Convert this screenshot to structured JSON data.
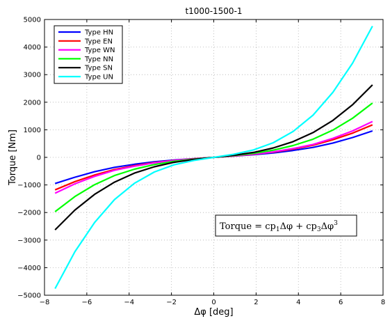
{
  "chart_data": {
    "type": "line",
    "title": "t1000-1500-1",
    "xlabel": "Δφ [deg]",
    "ylabel": "Torque [Nm]",
    "xlim": [
      -8,
      8
    ],
    "ylim": [
      -5000,
      5000
    ],
    "xticks": [
      -8,
      -6,
      -4,
      -2,
      0,
      2,
      4,
      6,
      8
    ],
    "yticks": [
      -5000,
      -4000,
      -3000,
      -2000,
      -1000,
      0,
      1000,
      2000,
      3000,
      4000,
      5000
    ],
    "grid": true,
    "legend_position": "top-left",
    "annotation": {
      "prefix": "Torque = cp",
      "sub1": "1",
      "mid": "Δφ + cp",
      "sub3": "3",
      "suffix": "Δφ",
      "sup": "3"
    },
    "x": [
      -7.5,
      -6.56,
      -5.63,
      -4.69,
      -3.75,
      -2.81,
      -1.88,
      -0.94,
      0,
      0.94,
      1.88,
      2.81,
      3.75,
      4.69,
      5.63,
      6.56,
      7.5
    ],
    "series": [
      {
        "name": "Type HN",
        "color": "#0000ff",
        "values": [
          -950,
          -720,
          -520,
          -360,
          -250,
          -160,
          -95,
          -45,
          0,
          45,
          95,
          160,
          250,
          360,
          520,
          720,
          960
        ]
      },
      {
        "name": "Type EN",
        "color": "#ff0000",
        "values": [
          -1180,
          -880,
          -640,
          -440,
          -300,
          -190,
          -110,
          -50,
          0,
          50,
          110,
          190,
          300,
          440,
          640,
          880,
          1180
        ]
      },
      {
        "name": "Type WN",
        "color": "#ff00ff",
        "values": [
          -1300,
          -960,
          -690,
          -470,
          -320,
          -200,
          -115,
          -55,
          0,
          55,
          115,
          200,
          320,
          470,
          690,
          960,
          1300
        ]
      },
      {
        "name": "Type NN",
        "color": "#00ff00",
        "values": [
          -1970,
          -1420,
          -990,
          -660,
          -430,
          -260,
          -145,
          -65,
          0,
          65,
          145,
          260,
          430,
          660,
          990,
          1420,
          1970
        ]
      },
      {
        "name": "Type SN",
        "color": "#000000",
        "values": [
          -2630,
          -1910,
          -1340,
          -900,
          -570,
          -340,
          -180,
          -75,
          0,
          75,
          180,
          340,
          570,
          900,
          1340,
          1910,
          2630
        ]
      },
      {
        "name": "Type UN",
        "color": "#00ffff",
        "values": [
          -4760,
          -3420,
          -2360,
          -1530,
          -940,
          -530,
          -270,
          -110,
          0,
          110,
          270,
          530,
          940,
          1530,
          2360,
          3420,
          4760
        ]
      }
    ]
  }
}
